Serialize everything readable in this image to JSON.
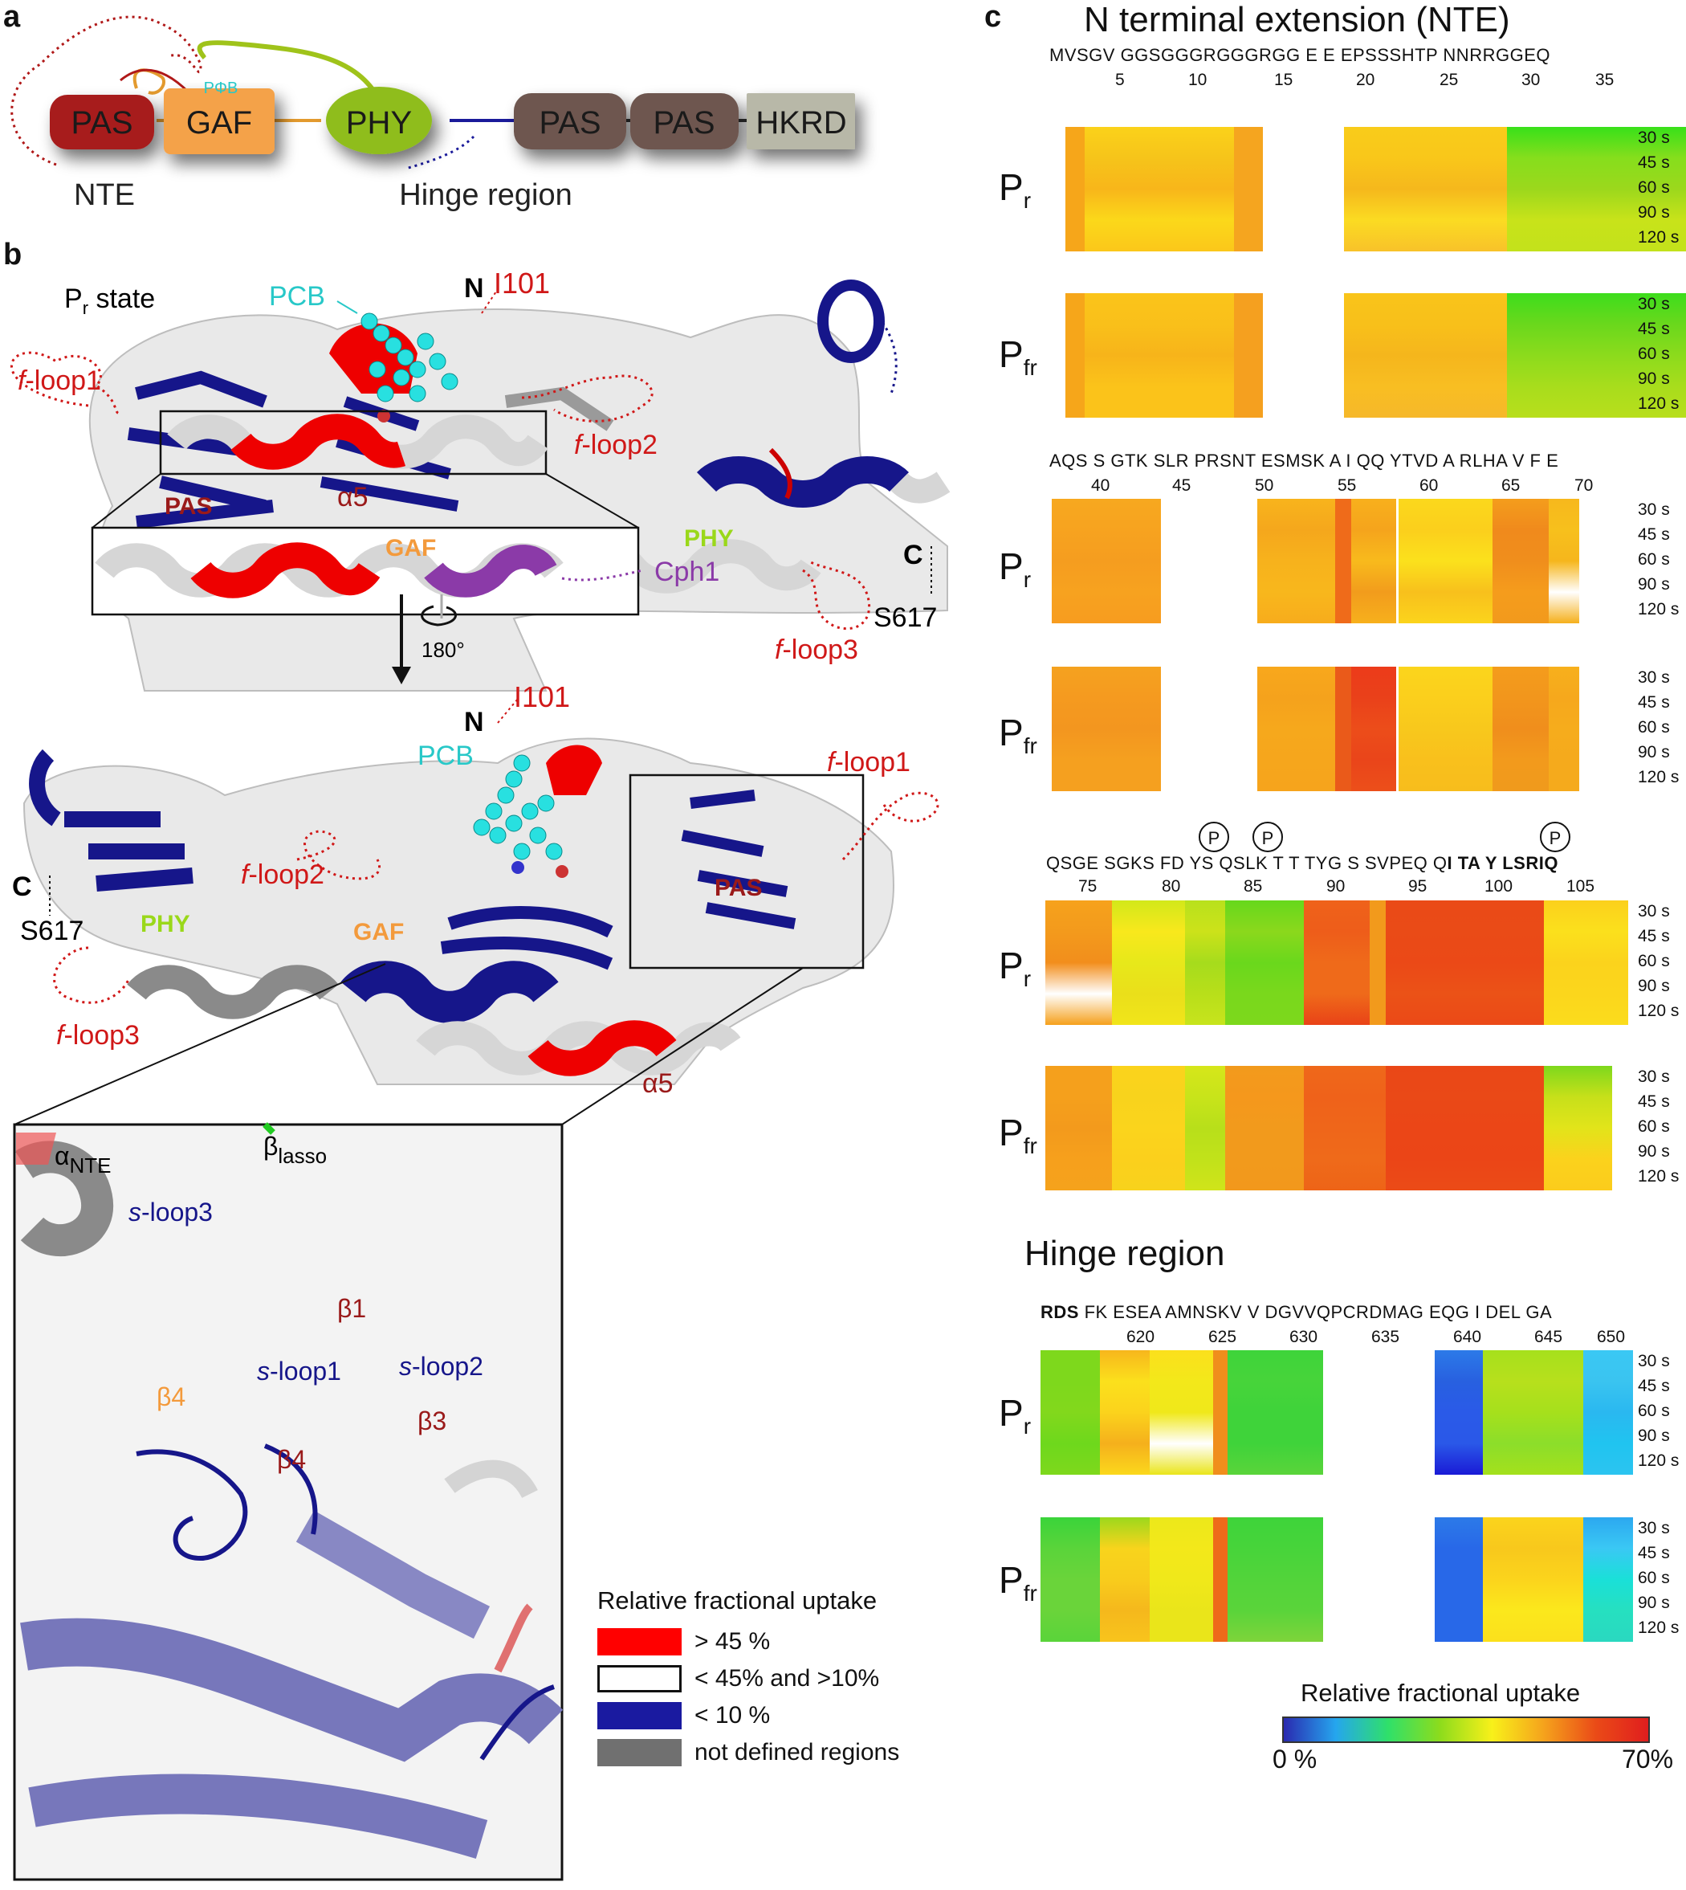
{
  "panels": {
    "a": "a",
    "b": "b",
    "c": "c"
  },
  "domain_diagram": {
    "domains": [
      "PAS",
      "GAF",
      "PHY",
      "PAS",
      "PAS",
      "HKRD"
    ],
    "chromophore_label": "PΦB",
    "nte_label": "NTE",
    "hinge_label": "Hinge region"
  },
  "structure": {
    "state_prefix": "P",
    "state_sub": "r",
    "state_suffix": " state",
    "pcb": "PCB",
    "n_term": "N",
    "c_term": "C",
    "i101": "I101",
    "s617": "S617",
    "f_loop1": "-loop1",
    "f_loop2": "-loop2",
    "f_loop3": "-loop3",
    "f_prefix": "f",
    "pas": "PAS",
    "gaf": "GAF",
    "phy": "PHY",
    "alpha5": "α5",
    "cph1": "Cph1",
    "rotation": "180°",
    "inset_labels": {
      "alpha_nte_a": "α",
      "alpha_nte_sub": "NTE",
      "beta_lasso_b": "β",
      "beta_lasso_sub": "lasso",
      "s_prefix": "s",
      "s_loop3": "-loop3",
      "s_loop1": "-loop1",
      "s_loop2": "-loop2",
      "beta1": "β1",
      "beta4_orange": "β4",
      "beta3": "β3",
      "beta4": "β4"
    },
    "legend": {
      "title": "Relative fractional uptake",
      "items": [
        {
          "label": "> 45 %",
          "color": "#ff0000"
        },
        {
          "label": "< 45% and >10%",
          "color": "#ffffff"
        },
        {
          "label": "< 10 %",
          "color": "#1a1aa0"
        },
        {
          "label": "not defined regions",
          "color": "#707070"
        }
      ]
    }
  },
  "heatmaps": {
    "title_nte": "N terminal extension (NTE)",
    "title_hinge": "Hinge region",
    "times": [
      "30 s",
      "45 s",
      "60 s",
      "90 s",
      "120 s"
    ],
    "pr": {
      "main": "P",
      "sub": "r"
    },
    "pfr": {
      "main": "P",
      "sub": "fr"
    },
    "block1": {
      "seq": "MVSGV GGSGGGRGGGRGG E E EPSSSHTP NNRRGGEQ",
      "nums": [
        "5",
        "10",
        "15",
        "20",
        "25",
        "30",
        "35"
      ]
    },
    "block2": {
      "seq": "AQS S GTK SLR PRSNT ESMSK A I QQ YTVD A RLHA V F E",
      "nums": [
        "40",
        "45",
        "50",
        "55",
        "60",
        "65",
        "70"
      ]
    },
    "block3": {
      "seq_plain": "QSGE SGKS FD YS QSLK T T TYG S SVPEQ Q",
      "seq_bold": "I TA Y LSRIQ",
      "phospho": "P",
      "nums": [
        "75",
        "80",
        "85",
        "90",
        "95",
        "100",
        "105"
      ]
    },
    "block4": {
      "seq_bold": "RDS",
      "seq_plain": " FK ESEA AMNSKV V DGVVQPCRDMAG EQG I DEL GA",
      "nums": [
        "620",
        "625",
        "630",
        "635",
        "640",
        "645",
        "650"
      ]
    },
    "colorbar": {
      "title": "Relative fractional uptake",
      "min": "0 %",
      "max": "70%"
    }
  }
}
